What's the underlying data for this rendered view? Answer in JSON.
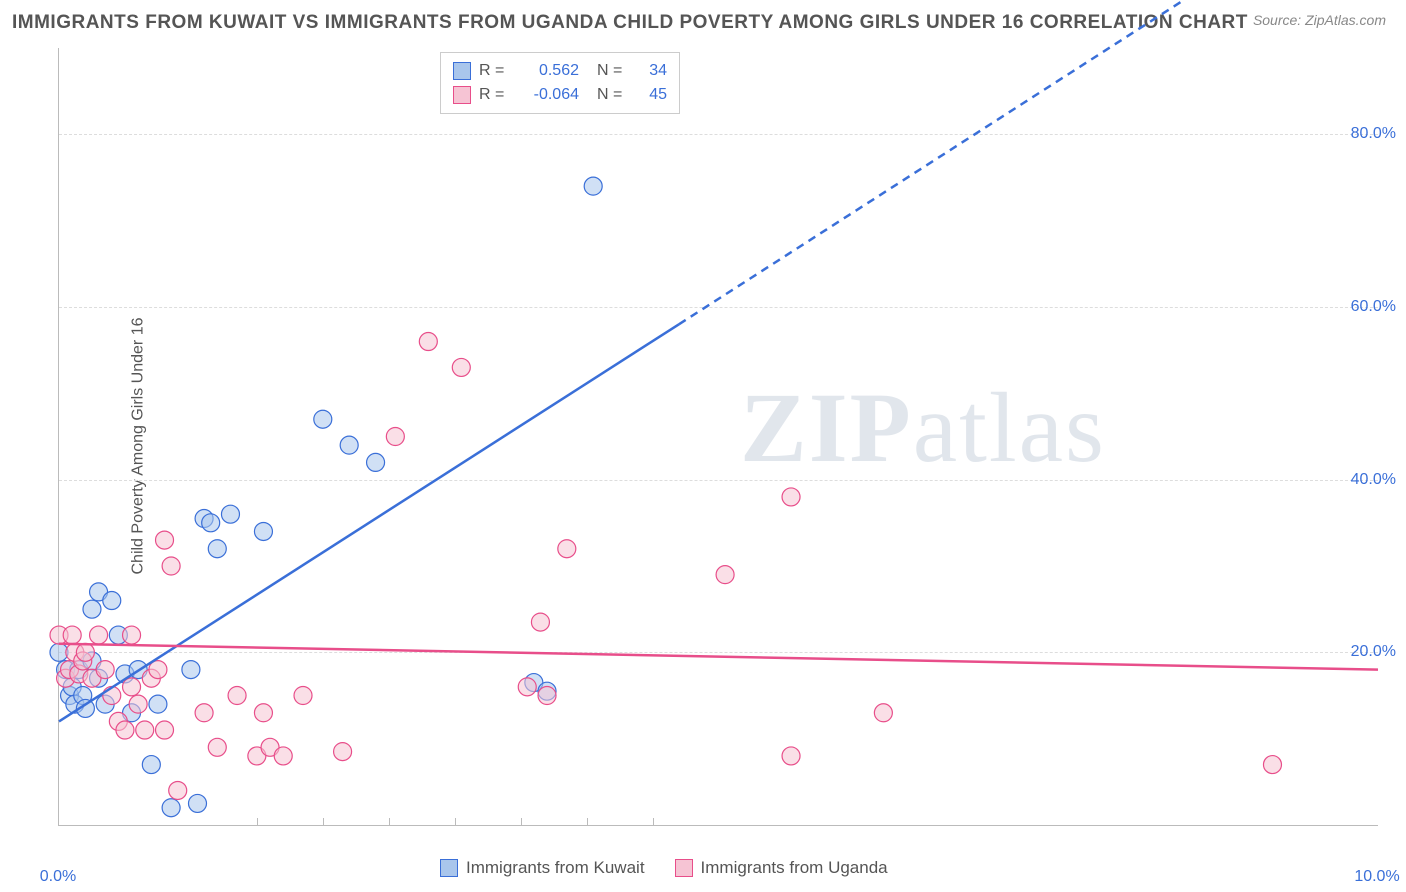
{
  "title": "IMMIGRANTS FROM KUWAIT VS IMMIGRANTS FROM UGANDA CHILD POVERTY AMONG GIRLS UNDER 16 CORRELATION CHART",
  "source": "Source: ZipAtlas.com",
  "ylabel": "Child Poverty Among Girls Under 16",
  "watermark": {
    "bold": "ZIP",
    "rest": "atlas"
  },
  "xlim": [
    0,
    10
  ],
  "ylim": [
    0,
    90
  ],
  "yticks": [
    20,
    40,
    60,
    80
  ],
  "ytick_labels": [
    "20.0%",
    "40.0%",
    "60.0%",
    "80.0%"
  ],
  "xticks_minor": [
    1.5,
    2.0,
    2.5,
    3.0,
    3.5,
    4.0,
    4.5
  ],
  "xtick_labels": [
    {
      "pos": 0.0,
      "label": "0.0%"
    },
    {
      "pos": 10.0,
      "label": "10.0%"
    }
  ],
  "colors": {
    "blue_fill": "#a9c6ec",
    "blue_stroke": "#3a6fd8",
    "pink_fill": "#f6c4d4",
    "pink_stroke": "#e84e8a",
    "grid": "#dddddd",
    "axis": "#bbbbbb",
    "text": "#555555",
    "value": "#3a6fd8",
    "bg": "#ffffff"
  },
  "marker_radius": 9,
  "marker_opacity": 0.55,
  "line_width": 2.5,
  "series": [
    {
      "name": "Immigrants from Kuwait",
      "color_fill": "#a9c6ec",
      "color_stroke": "#3a6fd8",
      "R": "0.562",
      "N": "34",
      "trend": {
        "x1": 0,
        "y1": 12,
        "x2": 4.7,
        "y2": 58,
        "x2_dash": 10,
        "y2_dash": 110
      },
      "points": [
        [
          0.05,
          18
        ],
        [
          0.08,
          15
        ],
        [
          0.1,
          16
        ],
        [
          0.12,
          14
        ],
        [
          0.15,
          18
        ],
        [
          0.18,
          15
        ],
        [
          0.2,
          13.5
        ],
        [
          0.25,
          19
        ],
        [
          0.3,
          17
        ],
        [
          0.35,
          14
        ],
        [
          0.25,
          25
        ],
        [
          0.3,
          27
        ],
        [
          0.4,
          26
        ],
        [
          0.45,
          22
        ],
        [
          0.5,
          17.5
        ],
        [
          0.55,
          13
        ],
        [
          0.6,
          18
        ],
        [
          0.7,
          7
        ],
        [
          0.75,
          14
        ],
        [
          0.85,
          2
        ],
        [
          1.0,
          18
        ],
        [
          1.05,
          2.5
        ],
        [
          1.1,
          35.5
        ],
        [
          1.15,
          35
        ],
        [
          1.2,
          32
        ],
        [
          1.3,
          36
        ],
        [
          1.55,
          34
        ],
        [
          2.0,
          47
        ],
        [
          2.2,
          44
        ],
        [
          2.4,
          42
        ],
        [
          3.6,
          16.5
        ],
        [
          3.7,
          15.5
        ],
        [
          4.05,
          74
        ],
        [
          0.0,
          20
        ]
      ]
    },
    {
      "name": "Immigrants from Uganda",
      "color_fill": "#f6c4d4",
      "color_stroke": "#e84e8a",
      "R": "-0.064",
      "N": "45",
      "trend": {
        "x1": 0,
        "y1": 21,
        "x2": 10,
        "y2": 18
      },
      "points": [
        [
          0.0,
          22
        ],
        [
          0.05,
          17
        ],
        [
          0.08,
          18
        ],
        [
          0.1,
          22
        ],
        [
          0.12,
          20
        ],
        [
          0.15,
          17.5
        ],
        [
          0.18,
          19
        ],
        [
          0.2,
          20
        ],
        [
          0.25,
          17
        ],
        [
          0.3,
          22
        ],
        [
          0.35,
          18
        ],
        [
          0.4,
          15
        ],
        [
          0.45,
          12
        ],
        [
          0.5,
          11
        ],
        [
          0.55,
          16
        ],
        [
          0.55,
          22
        ],
        [
          0.6,
          14
        ],
        [
          0.65,
          11
        ],
        [
          0.7,
          17
        ],
        [
          0.75,
          18
        ],
        [
          0.8,
          33
        ],
        [
          0.85,
          30
        ],
        [
          0.9,
          4
        ],
        [
          0.8,
          11
        ],
        [
          1.1,
          13
        ],
        [
          1.2,
          9
        ],
        [
          1.35,
          15
        ],
        [
          1.5,
          8
        ],
        [
          1.55,
          13
        ],
        [
          1.6,
          9
        ],
        [
          1.7,
          8
        ],
        [
          1.85,
          15
        ],
        [
          2.15,
          8.5
        ],
        [
          2.55,
          45
        ],
        [
          2.8,
          56
        ],
        [
          3.05,
          53
        ],
        [
          3.55,
          16
        ],
        [
          3.65,
          23.5
        ],
        [
          3.7,
          15
        ],
        [
          3.85,
          32
        ],
        [
          5.05,
          29
        ],
        [
          5.55,
          38
        ],
        [
          5.55,
          8
        ],
        [
          6.25,
          13
        ],
        [
          9.2,
          7
        ]
      ]
    }
  ],
  "legend_bottom": [
    {
      "label": "Immigrants from Kuwait",
      "fill": "#a9c6ec",
      "stroke": "#3a6fd8"
    },
    {
      "label": "Immigrants from Uganda",
      "fill": "#f6c4d4",
      "stroke": "#e84e8a"
    }
  ],
  "legend_top_labels": {
    "R": "R =",
    "N": "N ="
  }
}
